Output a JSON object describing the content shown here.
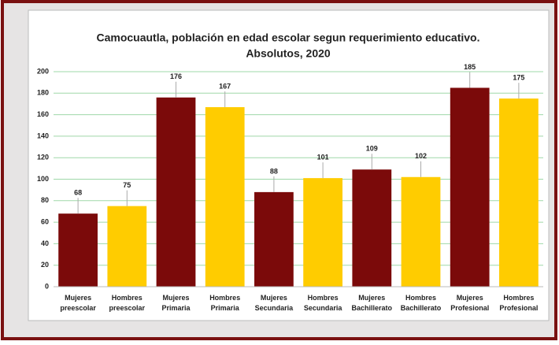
{
  "chart_data": {
    "type": "bar",
    "title": "Camocuautla, población en edad escolar segun requerimiento educativo.",
    "subtitle": "Absolutos, 2020",
    "categories": [
      "Mujeres preescolar",
      "Hombres preescolar",
      "Mujeres Primaria",
      "Hombres Primaria",
      "Mujeres Secundaria",
      "Hombres Secundaria",
      "Mujeres Bachillerato",
      "Hombres Bachillerato",
      "Mujeres Profesional",
      "Hombres Profesional"
    ],
    "values": [
      68,
      75,
      176,
      167,
      88,
      101,
      109,
      102,
      185,
      175
    ],
    "colors": [
      "#7b0a0a",
      "#ffcc00",
      "#7b0a0a",
      "#ffcc00",
      "#7b0a0a",
      "#ffcc00",
      "#7b0a0a",
      "#ffcc00",
      "#7b0a0a",
      "#ffcc00"
    ],
    "ylim": [
      0,
      200
    ],
    "yticks": [
      0,
      20,
      40,
      60,
      80,
      100,
      120,
      140,
      160,
      180,
      200
    ],
    "grid": true
  }
}
